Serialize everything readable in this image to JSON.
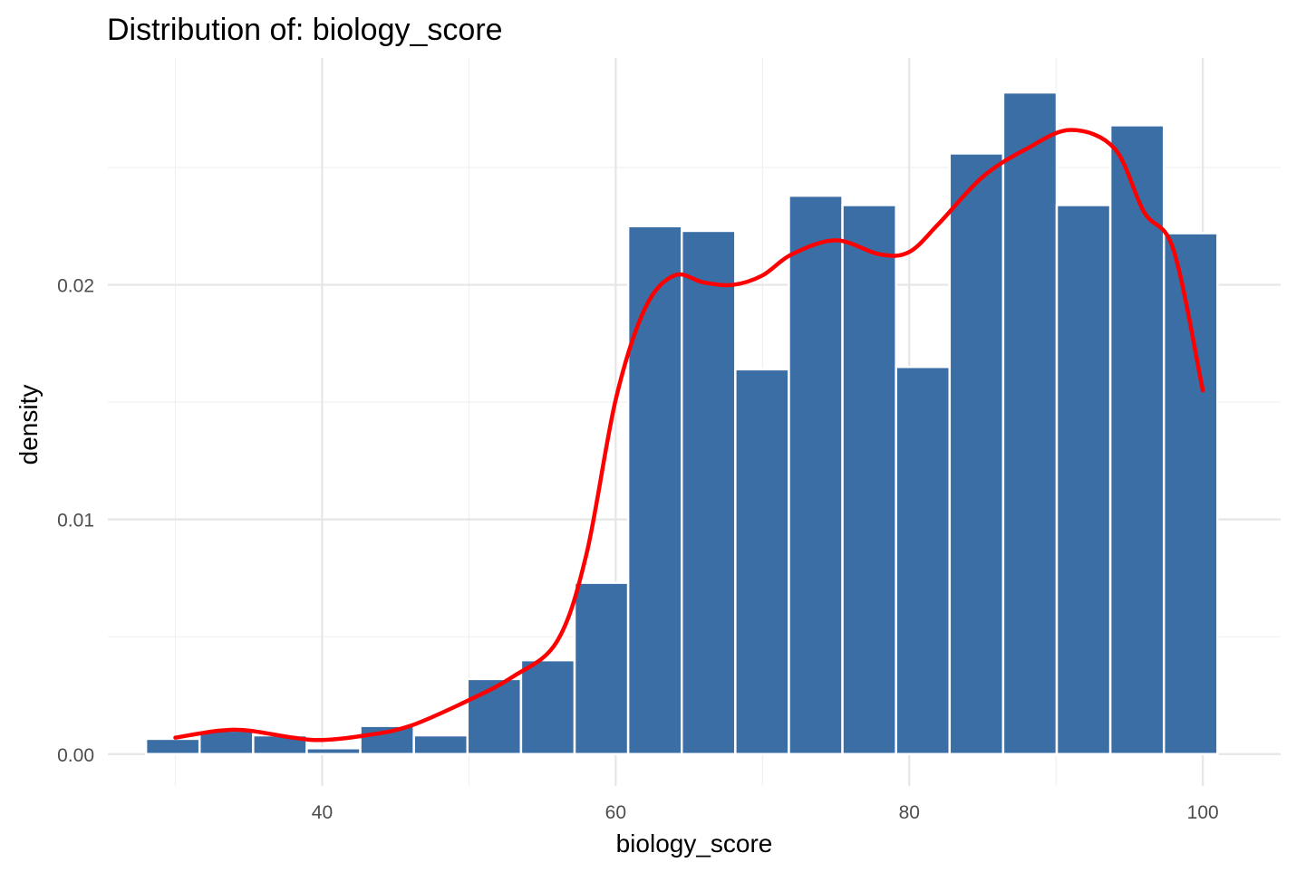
{
  "chart_data": {
    "type": "bar",
    "title": "Distribution of: biology_score",
    "xlabel": "biology_score",
    "ylabel": "density",
    "xlim": [
      25.4,
      105.3
    ],
    "ylim": [
      -0.00136,
      0.02967
    ],
    "x_ticks": [
      40,
      60,
      80,
      100
    ],
    "x_tick_labels": [
      "40",
      "60",
      "80",
      "100"
    ],
    "y_ticks": [
      0.0,
      0.01,
      0.02
    ],
    "y_tick_labels": [
      "0.00",
      "0.01",
      "0.02"
    ],
    "grid": true,
    "bar_color": "#3a6ea5",
    "curve_color": "#ff0000",
    "bins": [
      {
        "x0": 28.0,
        "x1": 31.65,
        "value": 0.00065
      },
      {
        "x0": 31.65,
        "x1": 35.3,
        "value": 0.001
      },
      {
        "x0": 35.3,
        "x1": 38.95,
        "value": 0.0008
      },
      {
        "x0": 38.95,
        "x1": 42.6,
        "value": 0.00025
      },
      {
        "x0": 42.6,
        "x1": 46.25,
        "value": 0.0012
      },
      {
        "x0": 46.25,
        "x1": 49.9,
        "value": 0.0008
      },
      {
        "x0": 49.9,
        "x1": 53.55,
        "value": 0.0032
      },
      {
        "x0": 53.55,
        "x1": 57.2,
        "value": 0.004
      },
      {
        "x0": 57.2,
        "x1": 60.85,
        "value": 0.0073
      },
      {
        "x0": 60.85,
        "x1": 64.5,
        "value": 0.0225
      },
      {
        "x0": 64.5,
        "x1": 68.15,
        "value": 0.0223
      },
      {
        "x0": 68.15,
        "x1": 71.8,
        "value": 0.0164
      },
      {
        "x0": 71.8,
        "x1": 75.45,
        "value": 0.0238
      },
      {
        "x0": 75.45,
        "x1": 79.1,
        "value": 0.0234
      },
      {
        "x0": 79.1,
        "x1": 82.75,
        "value": 0.0165
      },
      {
        "x0": 82.75,
        "x1": 86.4,
        "value": 0.0256
      },
      {
        "x0": 86.4,
        "x1": 90.05,
        "value": 0.0282
      },
      {
        "x0": 90.05,
        "x1": 93.7,
        "value": 0.0234
      },
      {
        "x0": 93.7,
        "x1": 97.35,
        "value": 0.0268
      },
      {
        "x0": 97.35,
        "x1": 101.0,
        "value": 0.0222
      }
    ],
    "density_curve": {
      "x": [
        30,
        33,
        35,
        38,
        40,
        43,
        46,
        50,
        53,
        56,
        58,
        60,
        62,
        64,
        66,
        68,
        70,
        72,
        75,
        78,
        80,
        82,
        85,
        88,
        91,
        94,
        96,
        98,
        100
      ],
      "y": [
        0.0007,
        0.001,
        0.001,
        0.0007,
        0.0006,
        0.0008,
        0.0012,
        0.0023,
        0.0033,
        0.0048,
        0.0085,
        0.0151,
        0.019,
        0.0204,
        0.0201,
        0.02,
        0.0204,
        0.0213,
        0.0219,
        0.0213,
        0.0214,
        0.0226,
        0.0246,
        0.0258,
        0.0266,
        0.0258,
        0.0231,
        0.0215,
        0.0155
      ]
    }
  }
}
